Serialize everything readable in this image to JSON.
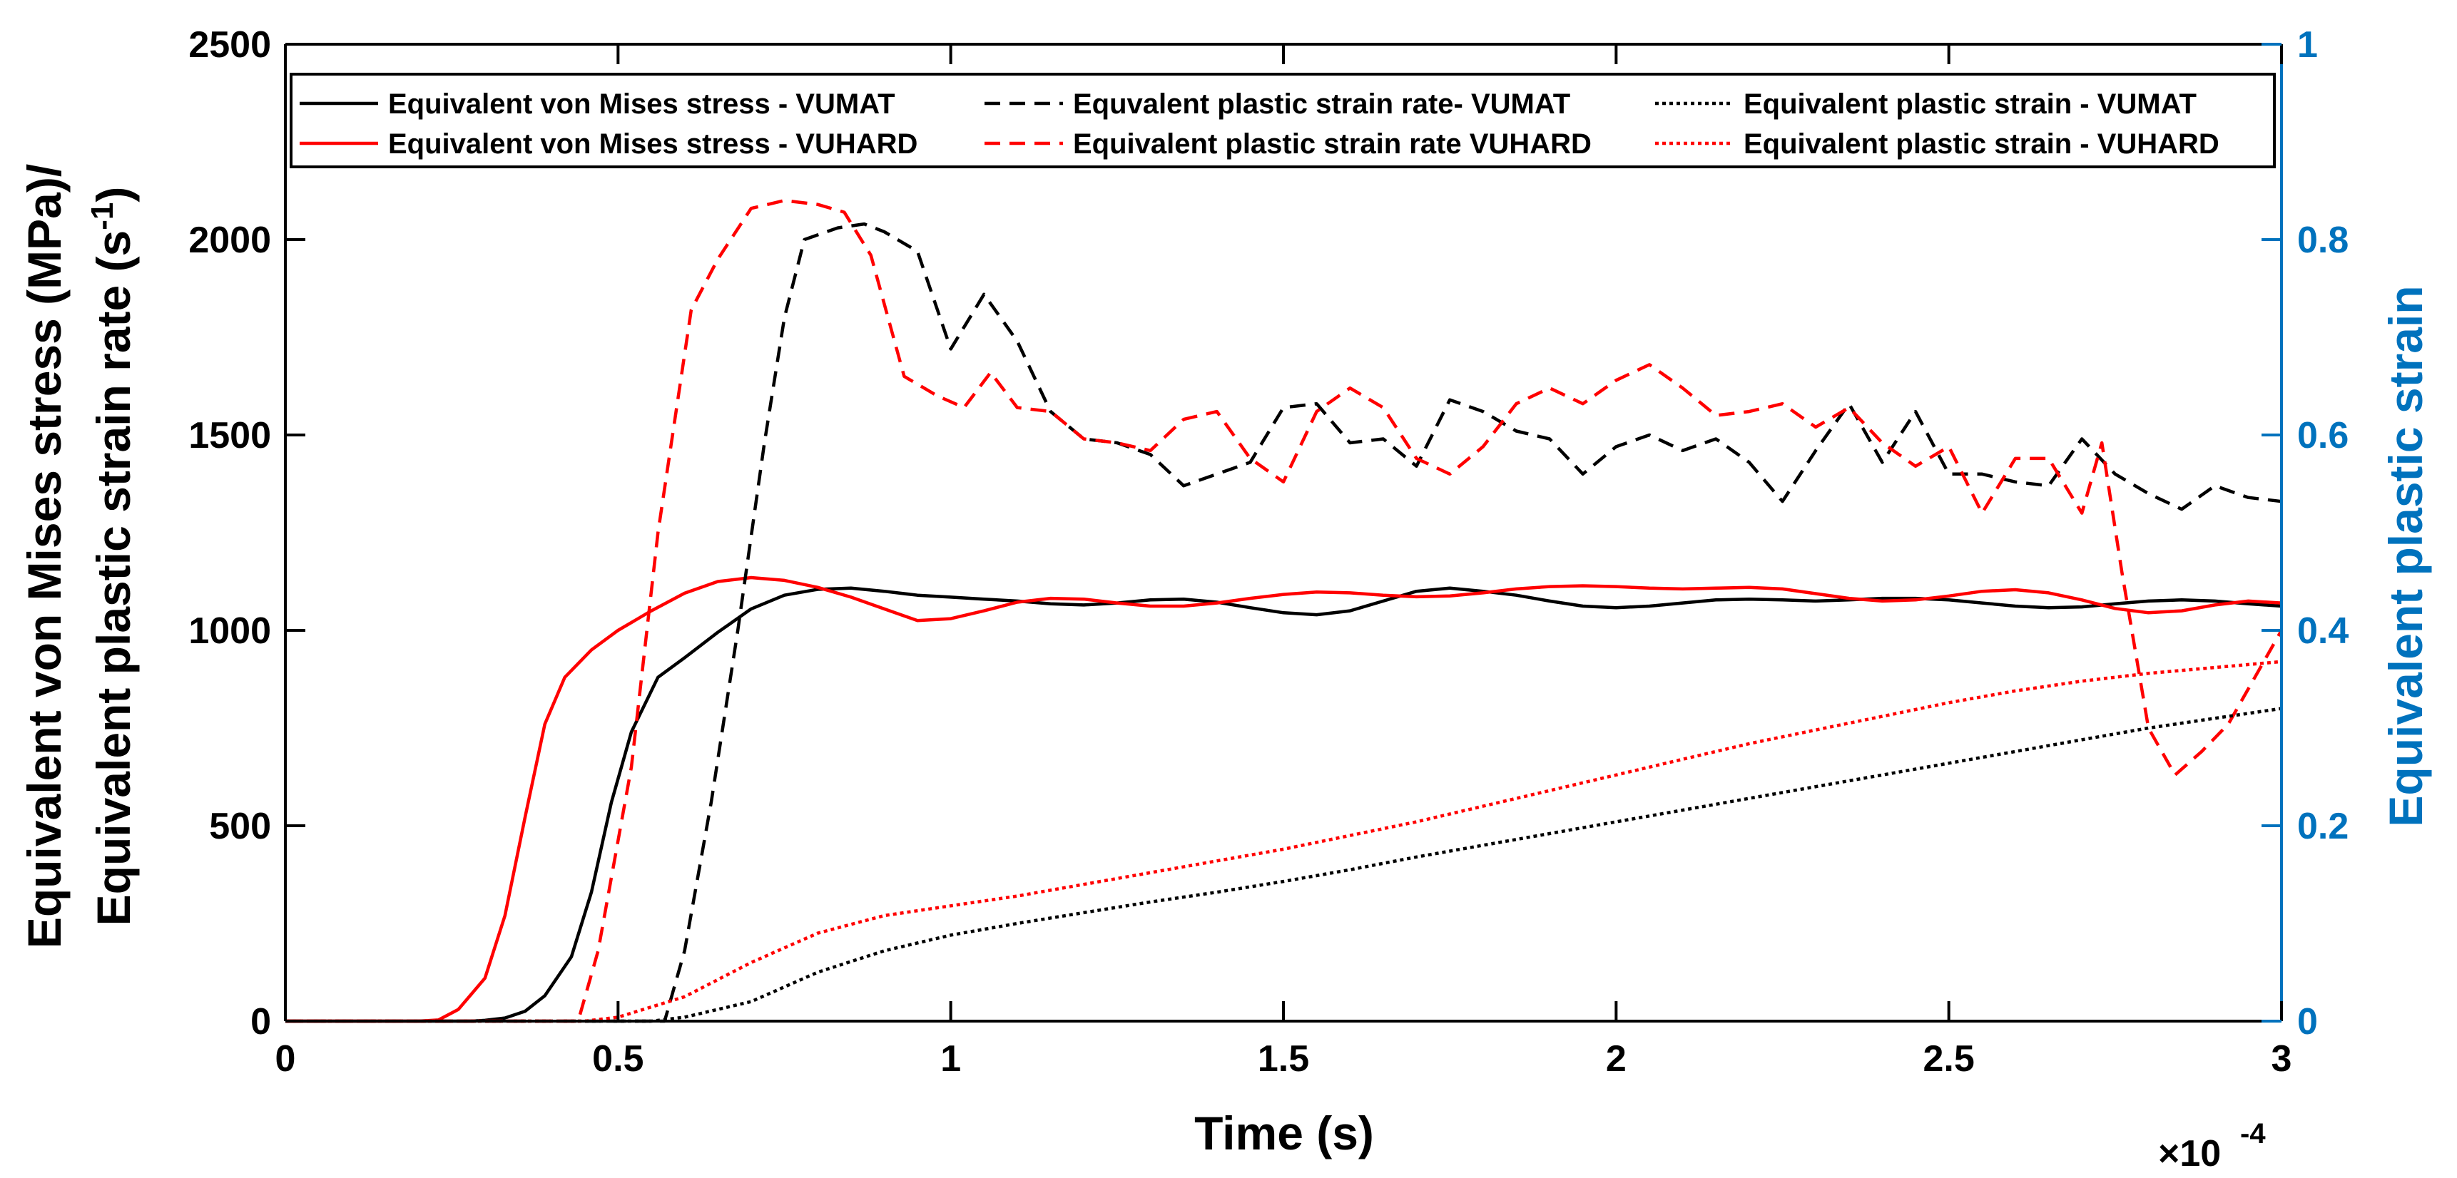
{
  "chart_data": {
    "type": "line",
    "xlabel": "Time (s)",
    "x_exponent_label": "×10",
    "x_exponent": "-4",
    "ylabel_left_line1": "Equivalent von Mises stress (MPa)/",
    "ylabel_left_line2": "Equivalent plastic strain rate (s",
    "ylabel_left_sup": "-1",
    "ylabel_left_close": ")",
    "ylabel_right": "Equivalent plastic strain",
    "xlim": [
      0,
      3
    ],
    "ylim_left": [
      0,
      2500
    ],
    "ylim_right": [
      0,
      1
    ],
    "x_ticks": [
      "0",
      "0.5",
      "1",
      "1.5",
      "2",
      "2.5",
      "3"
    ],
    "y_ticks_left": [
      "0",
      "500",
      "1000",
      "1500",
      "2000",
      "2500"
    ],
    "y_ticks_right": [
      "0",
      "0.2",
      "0.4",
      "0.6",
      "0.8",
      "1"
    ],
    "grid": false,
    "legend_position": "top",
    "colors": {
      "black": "#000000",
      "red": "#ff0000",
      "right_axis": "#0072bd"
    },
    "series": [
      {
        "name": "Equivalent von Mises stress - VUMAT",
        "color": "#000000",
        "dash": "solid",
        "axis": "left",
        "points": [
          [
            0,
            0
          ],
          [
            0.28,
            0
          ],
          [
            0.3,
            2
          ],
          [
            0.33,
            8
          ],
          [
            0.36,
            25
          ],
          [
            0.39,
            65
          ],
          [
            0.43,
            165
          ],
          [
            0.46,
            330
          ],
          [
            0.49,
            560
          ],
          [
            0.52,
            740
          ],
          [
            0.56,
            880
          ],
          [
            0.6,
            930
          ],
          [
            0.65,
            995
          ],
          [
            0.7,
            1055
          ],
          [
            0.75,
            1090
          ],
          [
            0.8,
            1105
          ],
          [
            0.85,
            1108
          ],
          [
            0.9,
            1100
          ],
          [
            0.95,
            1090
          ],
          [
            1.0,
            1085
          ],
          [
            1.05,
            1080
          ],
          [
            1.1,
            1075
          ],
          [
            1.15,
            1068
          ],
          [
            1.2,
            1065
          ],
          [
            1.25,
            1070
          ],
          [
            1.3,
            1078
          ],
          [
            1.35,
            1080
          ],
          [
            1.4,
            1072
          ],
          [
            1.45,
            1058
          ],
          [
            1.5,
            1045
          ],
          [
            1.55,
            1040
          ],
          [
            1.6,
            1050
          ],
          [
            1.65,
            1075
          ],
          [
            1.7,
            1100
          ],
          [
            1.75,
            1108
          ],
          [
            1.8,
            1100
          ],
          [
            1.85,
            1090
          ],
          [
            1.9,
            1075
          ],
          [
            1.95,
            1062
          ],
          [
            2.0,
            1058
          ],
          [
            2.05,
            1062
          ],
          [
            2.1,
            1070
          ],
          [
            2.15,
            1078
          ],
          [
            2.2,
            1080
          ],
          [
            2.25,
            1078
          ],
          [
            2.3,
            1075
          ],
          [
            2.35,
            1078
          ],
          [
            2.4,
            1082
          ],
          [
            2.45,
            1082
          ],
          [
            2.5,
            1078
          ],
          [
            2.55,
            1070
          ],
          [
            2.6,
            1062
          ],
          [
            2.65,
            1058
          ],
          [
            2.7,
            1060
          ],
          [
            2.75,
            1068
          ],
          [
            2.8,
            1075
          ],
          [
            2.85,
            1078
          ],
          [
            2.9,
            1075
          ],
          [
            2.95,
            1068
          ],
          [
            3.0,
            1062
          ]
        ]
      },
      {
        "name": "Equivalent von Mises stress - VUHARD",
        "color": "#ff0000",
        "dash": "solid",
        "axis": "left",
        "points": [
          [
            0,
            0
          ],
          [
            0.2,
            0
          ],
          [
            0.23,
            3
          ],
          [
            0.26,
            30
          ],
          [
            0.3,
            110
          ],
          [
            0.33,
            270
          ],
          [
            0.36,
            520
          ],
          [
            0.39,
            760
          ],
          [
            0.42,
            880
          ],
          [
            0.46,
            950
          ],
          [
            0.5,
            1000
          ],
          [
            0.55,
            1050
          ],
          [
            0.6,
            1095
          ],
          [
            0.65,
            1125
          ],
          [
            0.7,
            1135
          ],
          [
            0.75,
            1128
          ],
          [
            0.8,
            1110
          ],
          [
            0.85,
            1085
          ],
          [
            0.9,
            1055
          ],
          [
            0.95,
            1025
          ],
          [
            1.0,
            1030
          ],
          [
            1.05,
            1050
          ],
          [
            1.1,
            1072
          ],
          [
            1.15,
            1082
          ],
          [
            1.2,
            1080
          ],
          [
            1.25,
            1070
          ],
          [
            1.3,
            1062
          ],
          [
            1.35,
            1062
          ],
          [
            1.4,
            1070
          ],
          [
            1.45,
            1082
          ],
          [
            1.5,
            1092
          ],
          [
            1.55,
            1098
          ],
          [
            1.6,
            1096
          ],
          [
            1.65,
            1090
          ],
          [
            1.7,
            1086
          ],
          [
            1.75,
            1088
          ],
          [
            1.8,
            1096
          ],
          [
            1.85,
            1106
          ],
          [
            1.9,
            1112
          ],
          [
            1.95,
            1114
          ],
          [
            2.0,
            1112
          ],
          [
            2.05,
            1108
          ],
          [
            2.1,
            1106
          ],
          [
            2.15,
            1108
          ],
          [
            2.2,
            1110
          ],
          [
            2.25,
            1106
          ],
          [
            2.3,
            1094
          ],
          [
            2.35,
            1082
          ],
          [
            2.4,
            1075
          ],
          [
            2.45,
            1078
          ],
          [
            2.5,
            1088
          ],
          [
            2.55,
            1100
          ],
          [
            2.6,
            1104
          ],
          [
            2.65,
            1096
          ],
          [
            2.7,
            1078
          ],
          [
            2.75,
            1056
          ],
          [
            2.8,
            1045
          ],
          [
            2.85,
            1050
          ],
          [
            2.9,
            1065
          ],
          [
            2.95,
            1075
          ],
          [
            3.0,
            1070
          ]
        ]
      },
      {
        "name": "Equvalent plastic strain rate- VUMAT",
        "color": "#000000",
        "dash": "dashed",
        "axis": "left",
        "points": [
          [
            0,
            0
          ],
          [
            0.57,
            0
          ],
          [
            0.6,
            180
          ],
          [
            0.64,
            560
          ],
          [
            0.68,
            1000
          ],
          [
            0.72,
            1480
          ],
          [
            0.75,
            1800
          ],
          [
            0.78,
            2000
          ],
          [
            0.83,
            2030
          ],
          [
            0.87,
            2040
          ],
          [
            0.9,
            2020
          ],
          [
            0.95,
            1970
          ],
          [
            1.0,
            1720
          ],
          [
            1.05,
            1860
          ],
          [
            1.1,
            1740
          ],
          [
            1.15,
            1560
          ],
          [
            1.2,
            1490
          ],
          [
            1.25,
            1480
          ],
          [
            1.3,
            1450
          ],
          [
            1.35,
            1370
          ],
          [
            1.4,
            1400
          ],
          [
            1.45,
            1430
          ],
          [
            1.5,
            1570
          ],
          [
            1.55,
            1580
          ],
          [
            1.6,
            1480
          ],
          [
            1.65,
            1490
          ],
          [
            1.7,
            1420
          ],
          [
            1.75,
            1590
          ],
          [
            1.8,
            1560
          ],
          [
            1.85,
            1510
          ],
          [
            1.9,
            1490
          ],
          [
            1.95,
            1400
          ],
          [
            2.0,
            1470
          ],
          [
            2.05,
            1500
          ],
          [
            2.1,
            1460
          ],
          [
            2.15,
            1490
          ],
          [
            2.2,
            1430
          ],
          [
            2.25,
            1330
          ],
          [
            2.3,
            1460
          ],
          [
            2.35,
            1580
          ],
          [
            2.4,
            1430
          ],
          [
            2.45,
            1560
          ],
          [
            2.5,
            1400
          ],
          [
            2.55,
            1400
          ],
          [
            2.6,
            1380
          ],
          [
            2.65,
            1370
          ],
          [
            2.7,
            1490
          ],
          [
            2.75,
            1400
          ],
          [
            2.8,
            1350
          ],
          [
            2.85,
            1310
          ],
          [
            2.9,
            1370
          ],
          [
            2.95,
            1340
          ],
          [
            3.0,
            1330
          ]
        ]
      },
      {
        "name": "Equivalent plastic strain rate VUHARD",
        "color": "#ff0000",
        "dash": "dashed",
        "axis": "left",
        "points": [
          [
            0,
            0
          ],
          [
            0.44,
            0
          ],
          [
            0.47,
            180
          ],
          [
            0.52,
            650
          ],
          [
            0.56,
            1250
          ],
          [
            0.61,
            1820
          ],
          [
            0.65,
            1950
          ],
          [
            0.7,
            2080
          ],
          [
            0.75,
            2100
          ],
          [
            0.8,
            2090
          ],
          [
            0.84,
            2070
          ],
          [
            0.88,
            1960
          ],
          [
            0.93,
            1650
          ],
          [
            0.98,
            1600
          ],
          [
            1.02,
            1570
          ],
          [
            1.06,
            1660
          ],
          [
            1.1,
            1570
          ],
          [
            1.15,
            1560
          ],
          [
            1.2,
            1490
          ],
          [
            1.25,
            1480
          ],
          [
            1.3,
            1460
          ],
          [
            1.35,
            1540
          ],
          [
            1.4,
            1560
          ],
          [
            1.45,
            1440
          ],
          [
            1.5,
            1380
          ],
          [
            1.55,
            1560
          ],
          [
            1.6,
            1620
          ],
          [
            1.65,
            1570
          ],
          [
            1.7,
            1440
          ],
          [
            1.75,
            1400
          ],
          [
            1.8,
            1470
          ],
          [
            1.85,
            1580
          ],
          [
            1.9,
            1620
          ],
          [
            1.95,
            1580
          ],
          [
            2.0,
            1640
          ],
          [
            2.05,
            1680
          ],
          [
            2.1,
            1620
          ],
          [
            2.15,
            1550
          ],
          [
            2.2,
            1560
          ],
          [
            2.25,
            1580
          ],
          [
            2.3,
            1520
          ],
          [
            2.35,
            1570
          ],
          [
            2.4,
            1480
          ],
          [
            2.45,
            1420
          ],
          [
            2.5,
            1470
          ],
          [
            2.55,
            1300
          ],
          [
            2.6,
            1440
          ],
          [
            2.65,
            1440
          ],
          [
            2.7,
            1300
          ],
          [
            2.73,
            1480
          ],
          [
            2.76,
            1150
          ],
          [
            2.8,
            750
          ],
          [
            2.84,
            630
          ],
          [
            2.88,
            690
          ],
          [
            2.92,
            760
          ],
          [
            2.96,
            880
          ],
          [
            3.0,
            1000
          ]
        ]
      },
      {
        "name": "Equivalent plastic strain - VUMAT",
        "color": "#000000",
        "dash": "dotted",
        "axis": "right",
        "points": [
          [
            0,
            0
          ],
          [
            0.55,
            0
          ],
          [
            0.6,
            0.004
          ],
          [
            0.7,
            0.02
          ],
          [
            0.8,
            0.05
          ],
          [
            0.9,
            0.072
          ],
          [
            1.0,
            0.088
          ],
          [
            1.1,
            0.1
          ],
          [
            1.2,
            0.111
          ],
          [
            1.3,
            0.122
          ],
          [
            1.4,
            0.132
          ],
          [
            1.5,
            0.143
          ],
          [
            1.6,
            0.155
          ],
          [
            1.7,
            0.168
          ],
          [
            1.8,
            0.18
          ],
          [
            1.9,
            0.192
          ],
          [
            2.0,
            0.204
          ],
          [
            2.1,
            0.216
          ],
          [
            2.2,
            0.228
          ],
          [
            2.3,
            0.24
          ],
          [
            2.4,
            0.252
          ],
          [
            2.5,
            0.264
          ],
          [
            2.6,
            0.276
          ],
          [
            2.7,
            0.288
          ],
          [
            2.8,
            0.3
          ],
          [
            2.9,
            0.31
          ],
          [
            3.0,
            0.32
          ]
        ]
      },
      {
        "name": "Equivalent plastic strain - VUHARD",
        "color": "#ff0000",
        "dash": "dotted",
        "axis": "right",
        "points": [
          [
            0,
            0
          ],
          [
            0.45,
            0
          ],
          [
            0.5,
            0.004
          ],
          [
            0.6,
            0.025
          ],
          [
            0.7,
            0.06
          ],
          [
            0.8,
            0.09
          ],
          [
            0.9,
            0.108
          ],
          [
            1.0,
            0.118
          ],
          [
            1.1,
            0.128
          ],
          [
            1.2,
            0.14
          ],
          [
            1.3,
            0.152
          ],
          [
            1.4,
            0.164
          ],
          [
            1.5,
            0.176
          ],
          [
            1.6,
            0.19
          ],
          [
            1.7,
            0.204
          ],
          [
            1.8,
            0.22
          ],
          [
            1.9,
            0.236
          ],
          [
            2.0,
            0.252
          ],
          [
            2.1,
            0.268
          ],
          [
            2.2,
            0.284
          ],
          [
            2.3,
            0.298
          ],
          [
            2.4,
            0.312
          ],
          [
            2.5,
            0.326
          ],
          [
            2.6,
            0.338
          ],
          [
            2.7,
            0.348
          ],
          [
            2.8,
            0.356
          ],
          [
            2.9,
            0.362
          ],
          [
            3.0,
            0.368
          ]
        ]
      }
    ]
  }
}
